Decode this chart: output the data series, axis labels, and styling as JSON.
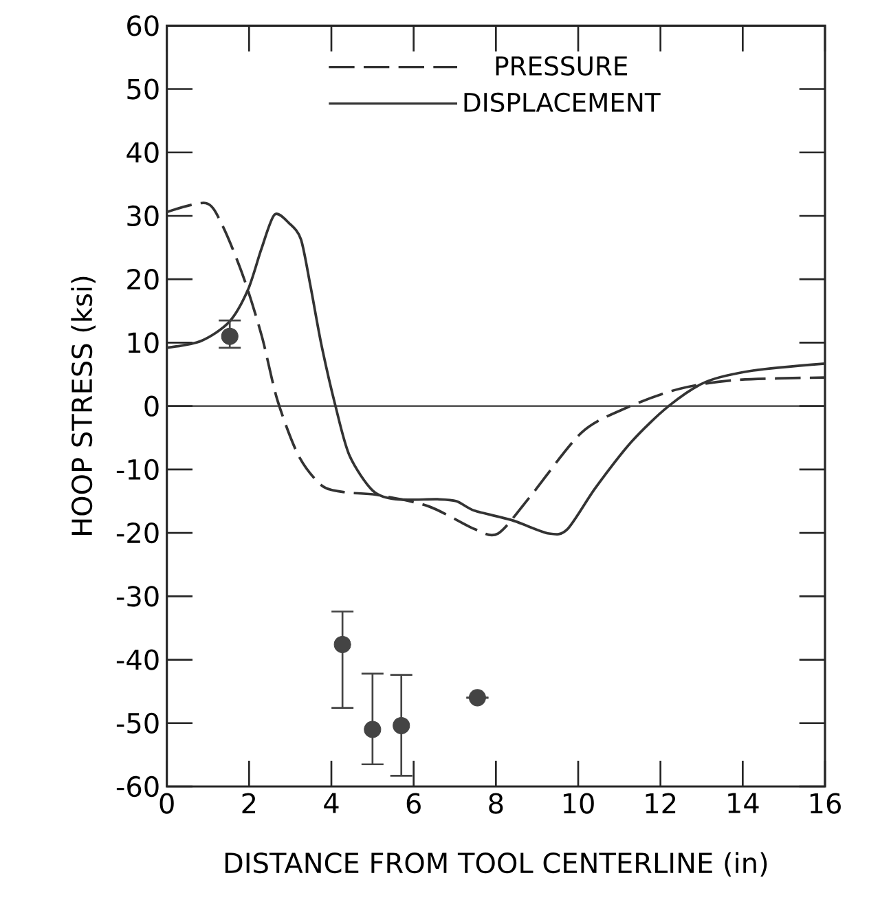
{
  "chart_data": {
    "type": "line",
    "xlabel": "DISTANCE FROM TOOL CENTERLINE (in)",
    "ylabel": "HOOP STRESS (ksi)",
    "xlim": [
      0,
      16
    ],
    "xticks": [
      0,
      2,
      4,
      6,
      8,
      10,
      12,
      14,
      16
    ],
    "ylim": [
      -60,
      60
    ],
    "yticks": [
      -60,
      -50,
      -40,
      -30,
      -20,
      -10,
      0,
      10,
      20,
      30,
      40,
      50,
      60
    ],
    "legend": "top",
    "grid": false,
    "ref_lines": [
      {
        "axis": "y",
        "value": 0,
        "color": "#333333"
      }
    ],
    "series": [
      {
        "name": "PRESSURE",
        "color": "#333333",
        "line_style": "dashed",
        "marker": "none",
        "x": [
          0,
          0.95,
          1.35,
          1.86,
          2.31,
          2.69,
          3.2,
          3.76,
          4.33,
          5.1,
          6.36,
          7.48,
          8.05,
          8.83,
          10.08,
          11.2,
          12.45,
          13.8,
          16
        ],
        "values": [
          30.6,
          32,
          28.5,
          20.4,
          11,
          0.9,
          -7.8,
          -12.5,
          -13.6,
          -14,
          -15.8,
          -19.4,
          -20.1,
          -14.3,
          -4.2,
          -0.2,
          2.7,
          4.1,
          4.5
        ]
      },
      {
        "name": "DISPLACEMENT",
        "color": "#333333",
        "line_style": "solid",
        "marker": "none",
        "x": [
          0,
          0.84,
          1.52,
          1.97,
          2.3,
          2.62,
          2.98,
          3.26,
          3.49,
          3.76,
          4.1,
          4.44,
          5.0,
          5.57,
          6.58,
          7.04,
          7.48,
          8.39,
          9.29,
          9.74,
          10.42,
          11.3,
          12.2,
          13.1,
          14.25,
          16
        ],
        "values": [
          9.2,
          10.3,
          13.3,
          18.3,
          24.8,
          30.2,
          28.8,
          26.3,
          19,
          9.6,
          0,
          -7.8,
          -13.3,
          -14.7,
          -14.7,
          -15,
          -16.5,
          -18,
          -20.1,
          -19.4,
          -12.9,
          -5.6,
          0,
          3.8,
          5.6,
          6.7
        ]
      },
      {
        "type": "scatter",
        "color": "#444444",
        "marker": "circle",
        "x": [
          1.53,
          4.27,
          5.0,
          5.7,
          7.55
        ],
        "values": [
          11,
          -37.6,
          -51,
          -50.4,
          -46
        ],
        "errors": [
          [
            9.2,
            13.5
          ],
          [
            -47.6,
            -32.4
          ],
          [
            -56.5,
            -42.2
          ],
          [
            -58.3,
            -42.4
          ],
          null
        ]
      }
    ]
  }
}
